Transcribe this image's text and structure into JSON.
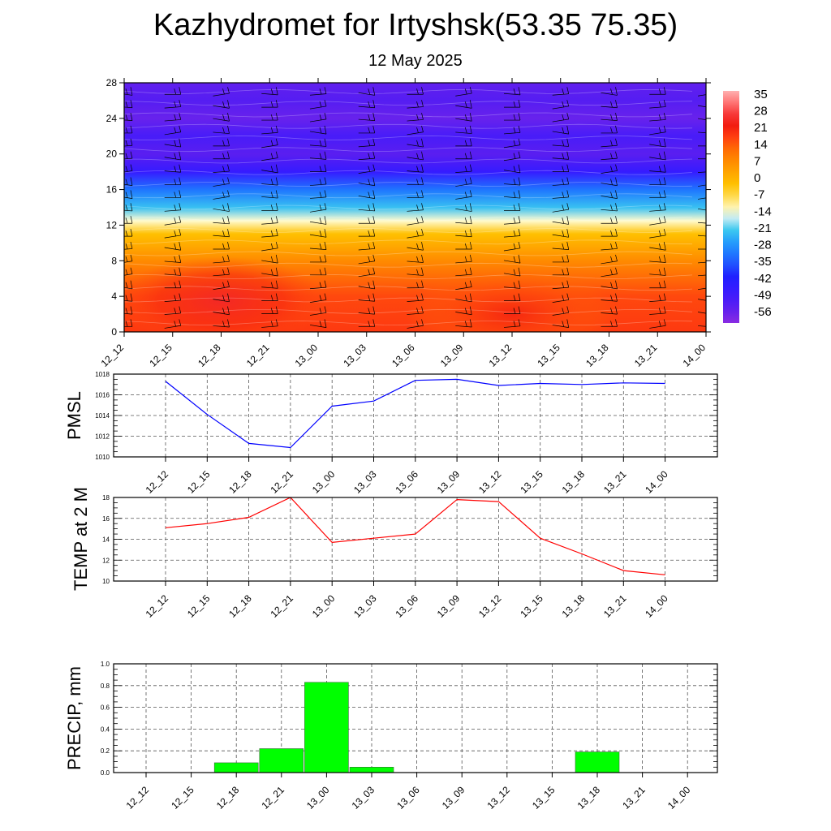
{
  "title": "Kazhydromet for Irtyshsk(53.35 75.35)",
  "subtitle": "12 May 2025",
  "time_labels": [
    "12_12",
    "12_15",
    "12_18",
    "12_21",
    "13_00",
    "13_03",
    "13_06",
    "13_09",
    "13_12",
    "13_15",
    "13_18",
    "13_21",
    "14_00"
  ],
  "chart_data": [
    {
      "type": "heatmap",
      "title": "",
      "x": [
        "12_12",
        "12_15",
        "12_18",
        "12_21",
        "13_00",
        "13_03",
        "13_06",
        "13_09",
        "13_12",
        "13_15",
        "13_18",
        "13_21",
        "14_00"
      ],
      "ylim": [
        0,
        28
      ],
      "yticks": [
        0,
        4,
        8,
        12,
        16,
        20,
        24,
        28
      ],
      "colorbar": {
        "ticks": [
          35,
          28,
          21,
          14,
          7,
          0,
          -7,
          -14,
          -21,
          -28,
          -35,
          -42,
          -49,
          -56
        ],
        "range": [
          -63,
          42
        ]
      },
      "wind_barbs": true,
      "profile_by_level": [
        {
          "level": 0,
          "value": 22
        },
        {
          "level": 4,
          "value": 20
        },
        {
          "level": 8,
          "value": 10
        },
        {
          "level": 11,
          "value": 0
        },
        {
          "level": 12.5,
          "value": -12
        },
        {
          "level": 14,
          "value": -22
        },
        {
          "level": 16,
          "value": -32
        },
        {
          "level": 18,
          "value": -48
        },
        {
          "level": 20,
          "value": -56
        },
        {
          "level": 22,
          "value": -52
        },
        {
          "level": 24,
          "value": -58
        },
        {
          "level": 26,
          "value": -55
        },
        {
          "level": 28,
          "value": -57
        }
      ],
      "warm_spots": [
        {
          "x_index": 2,
          "level": 3.5,
          "value": 30
        },
        {
          "x_index": 8,
          "level": 2,
          "value": 25
        }
      ]
    },
    {
      "type": "line",
      "ylabel": "PMSL",
      "x": [
        "12_12",
        "12_15",
        "12_18",
        "12_21",
        "13_00",
        "13_03",
        "13_06",
        "13_09",
        "13_12",
        "13_15",
        "13_18",
        "13_21",
        "14_00"
      ],
      "series": [
        {
          "values": [
            1017.3,
            1014.1,
            1011.3,
            1010.9,
            1014.9,
            1015.4,
            1017.4,
            1017.5,
            1016.9,
            1017.1,
            1017.0,
            1017.15,
            1017.1
          ],
          "color": "#0000ff"
        }
      ],
      "ylim": [
        1010,
        1018
      ],
      "yticks": [
        1010,
        1012,
        1014,
        1016,
        1018
      ],
      "grid": true
    },
    {
      "type": "line",
      "ylabel": "TEMP at 2 M",
      "x": [
        "12_12",
        "12_15",
        "12_18",
        "12_21",
        "13_00",
        "13_03",
        "13_06",
        "13_09",
        "13_12",
        "13_15",
        "13_18",
        "13_21",
        "14_00"
      ],
      "series": [
        {
          "values": [
            15.1,
            15.5,
            16.1,
            18.0,
            13.7,
            14.1,
            14.5,
            17.8,
            17.6,
            14.1,
            12.6,
            11.0,
            10.6
          ],
          "color": "#ff0000"
        }
      ],
      "ylim": [
        10,
        18
      ],
      "yticks": [
        10,
        12,
        14,
        16,
        18
      ],
      "grid": true
    },
    {
      "type": "bar",
      "ylabel": "PRECIP, mm",
      "categories": [
        "12_12",
        "12_15",
        "12_18",
        "12_21",
        "13_00",
        "13_03",
        "13_06",
        "13_09",
        "13_12",
        "13_15",
        "13_18",
        "13_21",
        "14_00"
      ],
      "values": [
        0,
        0,
        0.09,
        0.22,
        0.83,
        0.05,
        0,
        0,
        0,
        0,
        0.19,
        0,
        0
      ],
      "ylim": [
        0,
        1.0
      ],
      "yticks": [
        0.0,
        0.2,
        0.4,
        0.6,
        0.8,
        1.0
      ],
      "color": "#00ff00",
      "grid": true
    }
  ]
}
